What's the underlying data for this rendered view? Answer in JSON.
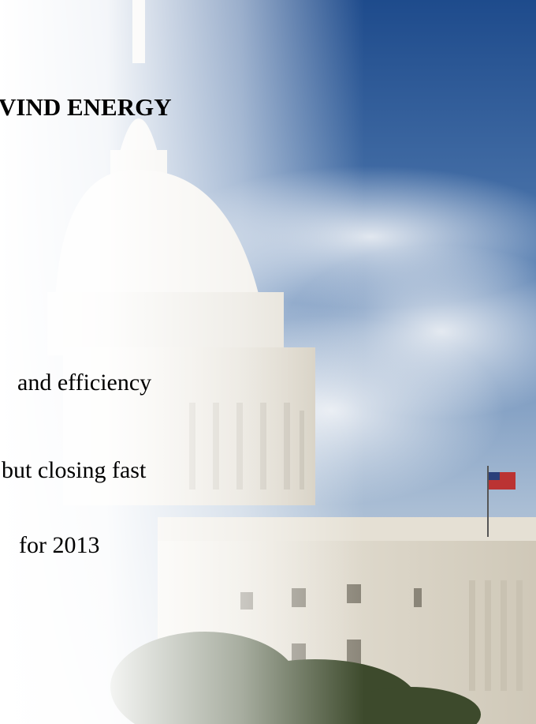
{
  "slide": {
    "title": "VIND ENERGY",
    "lines": [
      "and efficiency",
      "but closing fast",
      "for 2013"
    ]
  }
}
